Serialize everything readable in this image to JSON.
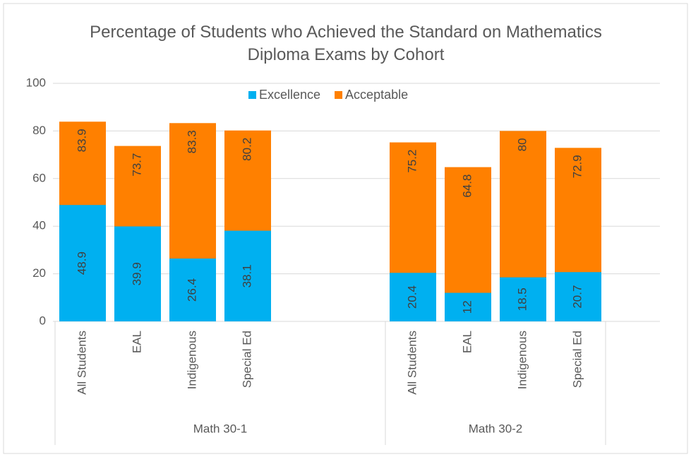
{
  "chart_data": {
    "type": "bar",
    "overlap": true,
    "title": "Percentage of Students who Achieved the Standard on Mathematics Diploma Exams by Cohort",
    "categories": [
      "All Students",
      "EAL",
      "Indigenous",
      "Special Ed",
      null,
      null,
      "All Students",
      "EAL",
      "Indigenous",
      "Special Ed",
      null
    ],
    "groups": [
      "Math 30-1",
      "Math 30-2"
    ],
    "series": [
      {
        "name": "Acceptable",
        "color": "#ff8000",
        "values": [
          83.9,
          73.7,
          83.3,
          80.2,
          null,
          null,
          75.2,
          64.8,
          80,
          72.9,
          null
        ]
      },
      {
        "name": "Excellence",
        "color": "#00b0f0",
        "values": [
          48.9,
          39.9,
          26.4,
          38.1,
          null,
          null,
          20.4,
          12,
          18.5,
          20.7,
          null
        ]
      }
    ],
    "ylim": [
      0,
      100
    ],
    "yticks": [
      0,
      20,
      40,
      60,
      80,
      100
    ],
    "grid": true,
    "legend": "top"
  }
}
